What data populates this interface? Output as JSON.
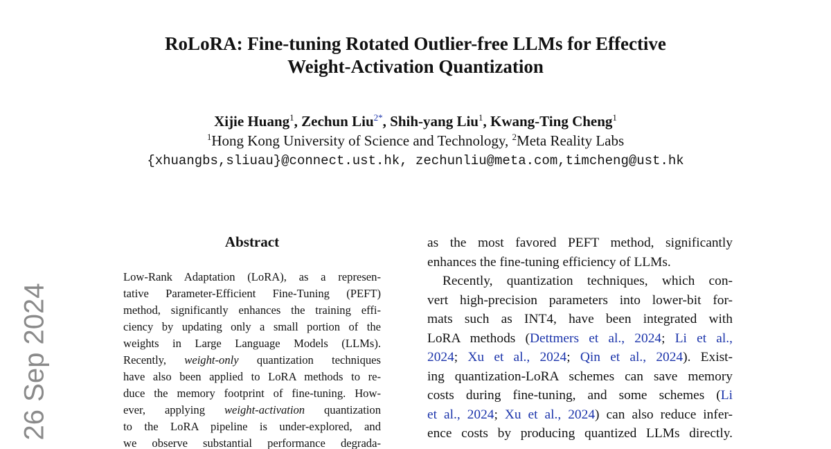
{
  "header": {
    "title": [
      "RoLoRA: Fine-tuning Rotated Outlier-free LLMs for Effective",
      "Weight-Activation Quantization"
    ],
    "authors": [
      "Xijie Huang",
      {
        "text": "1",
        "style": "sup"
      },
      ", Zechun Liu",
      {
        "text": "2*",
        "style": "sup-link"
      },
      ", Shih-yang Liu",
      {
        "text": "1",
        "style": "sup"
      },
      ", Kwang-Ting Cheng",
      {
        "text": "1",
        "style": "sup"
      }
    ],
    "affiliations": [
      {
        "text": "1",
        "style": "sup"
      },
      "Hong Kong University of Science and Technology, ",
      {
        "text": "2",
        "style": "sup"
      },
      "Meta Reality Labs"
    ],
    "emails": "{xhuangbs,sliuau}@connect.ust.hk, zechunliu@meta.com,timcheng@ust.hk"
  },
  "side_stamp": "26 Sep 2024",
  "abstract": {
    "heading": "Abstract",
    "lines": [
      [
        "Low-Rank Adaptation (LoRA), as a represen-"
      ],
      [
        "tative Parameter-Efficient Fine-Tuning (PEFT)"
      ],
      [
        "method, significantly enhances the training effi-"
      ],
      [
        "ciency by updating only a small portion of the"
      ],
      [
        "weights in Large Language Models (LLMs)."
      ],
      [
        "Recently, ",
        {
          "text": "weight-only",
          "style": "italic"
        },
        " quantization techniques"
      ],
      [
        "have also been applied to LoRA methods to re-"
      ],
      [
        "duce the memory footprint of fine-tuning. How-"
      ],
      [
        "ever, applying ",
        {
          "text": "weight-activation",
          "style": "italic"
        },
        " quantization"
      ],
      [
        "to the LoRA pipeline is under-explored, and"
      ],
      [
        "we observe substantial performance degrada-"
      ]
    ]
  },
  "right_column": {
    "paragraphs": [
      [
        [
          "as the most favored PEFT method, significantly"
        ],
        [
          "enhances the fine-tuning efficiency of LLMs."
        ]
      ],
      [
        [
          "Recently, quantization techniques, which con-"
        ],
        [
          "vert high-precision parameters into lower-bit for-"
        ],
        [
          "mats such as INT4, have been integrated with"
        ],
        [
          "LoRA methods (",
          {
            "text": "Dettmers et al., 2024",
            "style": "link"
          },
          "; ",
          {
            "text": "Li et al.,",
            "style": "link"
          }
        ],
        [
          {
            "text": "2024",
            "style": "link"
          },
          "; ",
          {
            "text": "Xu et al., 2024",
            "style": "link"
          },
          "; ",
          {
            "text": "Qin et al., 2024",
            "style": "link"
          },
          ").  Exist-"
        ],
        [
          "ing quantization-LoRA schemes can save memory"
        ],
        [
          "costs during fine-tuning, and some schemes (",
          {
            "text": "Li",
            "style": "link"
          }
        ],
        [
          {
            "text": "et al., 2024",
            "style": "link"
          },
          "; ",
          {
            "text": "Xu et al., 2024",
            "style": "link"
          },
          ") can also reduce infer-"
        ],
        [
          "ence costs by producing quantized LLMs directly."
        ]
      ]
    ]
  }
}
